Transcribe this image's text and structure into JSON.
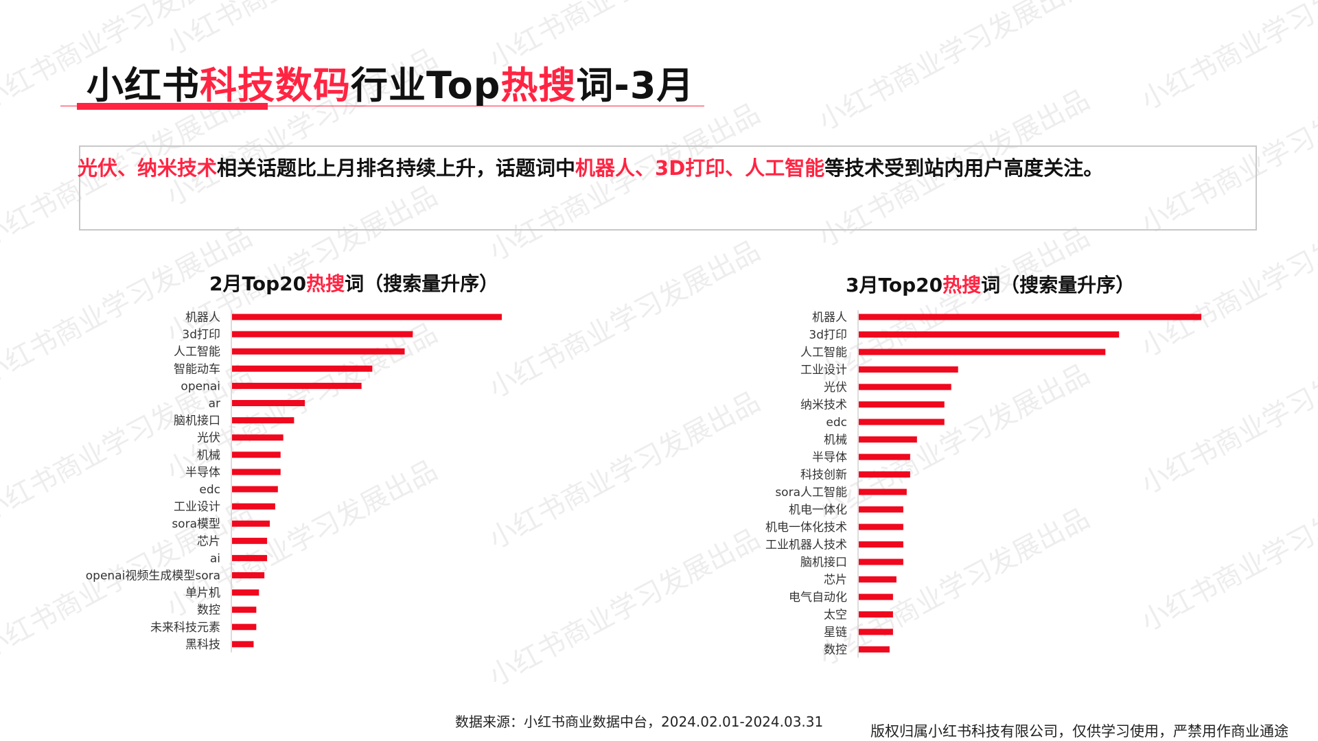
{
  "page": {
    "title_parts": {
      "p1": "小红书",
      "p2": "科技数码",
      "p3": "行业Top",
      "p4": "热搜",
      "p5": "词-3月"
    },
    "summary_parts": {
      "s1": "光伏、纳米技术",
      "s2": "相关话题比上月排名持续上升，话题词中",
      "s3": "机器人、3D打印、人工智能",
      "s4": "等技术受到站内用户高度关注。"
    },
    "source": "数据来源：小红书商业数据中台，2024.02.01-2024.03.31",
    "copyright": "版权归属小红书科技有限公司，仅供学习使用，严禁用作商业通途",
    "watermark": "小红书商业学习发展出品"
  },
  "colors": {
    "accent": "#ff2442",
    "bar": "#f0081e"
  },
  "chart_data": [
    {
      "type": "bar",
      "orientation": "horizontal",
      "title_parts": {
        "t1": "2月Top20",
        "t2": "热搜",
        "t3": "词（搜索量升序）"
      },
      "categories": [
        "机器人",
        "3d打印",
        "人工智能",
        "智能动车",
        "openai",
        "ar",
        "脑机接口",
        "光伏",
        "机械",
        "半导体",
        "edc",
        "工业设计",
        "sora模型",
        "芯片",
        "ai",
        "openai视频生成模型sora",
        "单片机",
        "数控",
        "未来科技元素",
        "黑科技"
      ],
      "values": [
        100,
        67,
        64,
        52,
        48,
        27,
        23,
        19,
        18,
        18,
        17,
        16,
        14,
        13,
        13,
        12,
        10,
        9,
        9,
        8
      ],
      "xlim": [
        0,
        100
      ],
      "xlabel": "",
      "ylabel": "",
      "grid": false,
      "legend": "none"
    },
    {
      "type": "bar",
      "orientation": "horizontal",
      "title_parts": {
        "t1": "3月Top20",
        "t2": "热搜",
        "t3": "词（搜索量升序）"
      },
      "categories": [
        "机器人",
        "3d打印",
        "人工智能",
        "工业设计",
        "光伏",
        "纳米技术",
        "edc",
        "机械",
        "半导体",
        "科技创新",
        "sora人工智能",
        "机电一体化",
        "机电一体化技术",
        "工业机器人技术",
        "脑机接口",
        "芯片",
        "电气自动化",
        "太空",
        "星链",
        "数控"
      ],
      "values": [
        100,
        76,
        72,
        29,
        27,
        25,
        25,
        17,
        15,
        15,
        14,
        13,
        13,
        13,
        13,
        11,
        10,
        10,
        10,
        9
      ],
      "xlim": [
        0,
        100
      ],
      "xlabel": "",
      "ylabel": "",
      "grid": false,
      "legend": "none"
    }
  ]
}
